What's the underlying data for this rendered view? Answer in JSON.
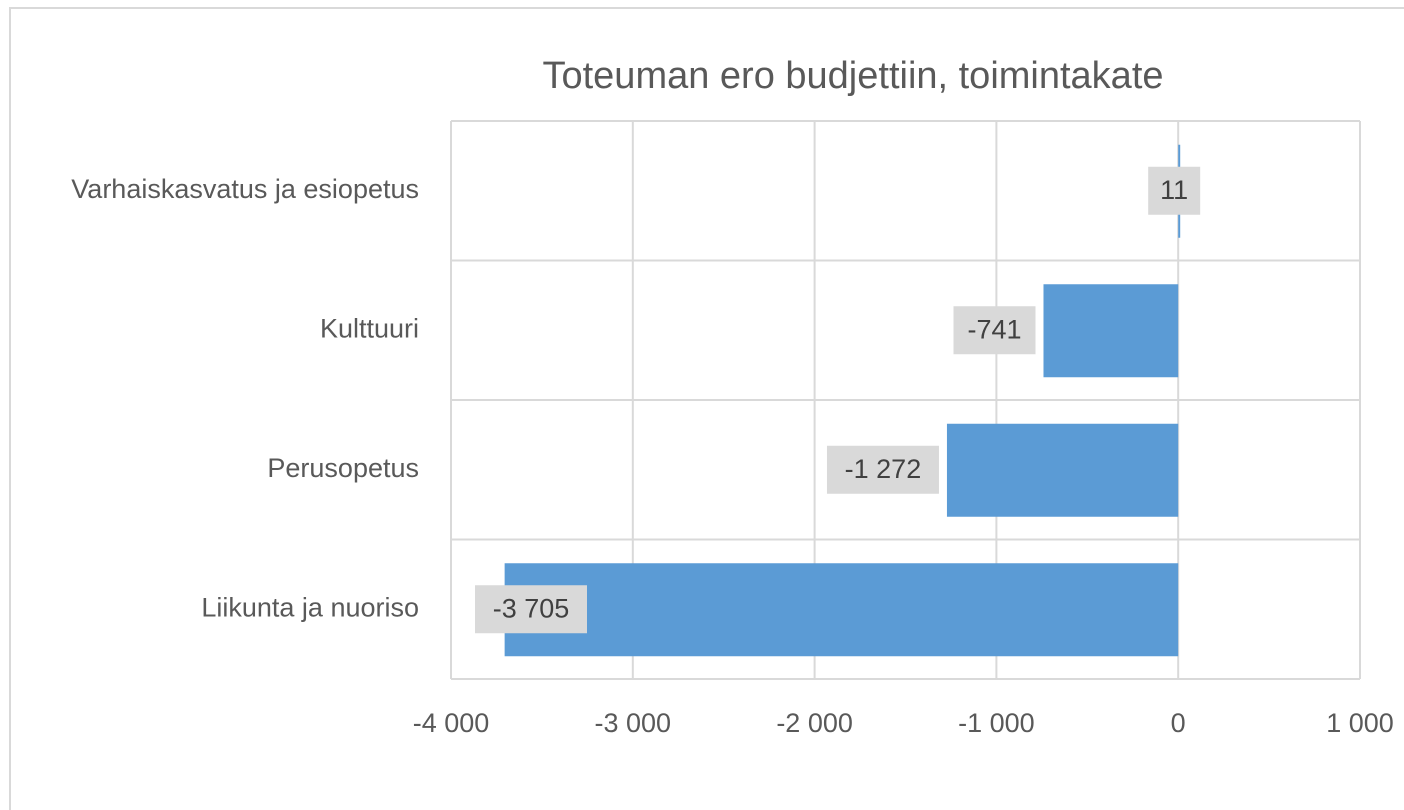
{
  "chart_data": {
    "type": "barh",
    "title": "Toteuman ero budjettiin, toimintakate",
    "categories": [
      "Varhaiskasvatus ja esiopetus",
      "Kulttuuri",
      "Perusopetus",
      "Liikunta ja nuoriso"
    ],
    "values": [
      11,
      -741,
      -1272,
      -3705
    ],
    "value_labels": [
      "11",
      "-741",
      "-1 272",
      "-3 705"
    ],
    "color": "#5b9bd5",
    "xlim": [
      -4000,
      1000
    ],
    "xticks": [
      {
        "value": -4000,
        "label": "-4 000"
      },
      {
        "value": -3000,
        "label": "-3 000"
      },
      {
        "value": -2000,
        "label": "-2 000"
      },
      {
        "value": -1000,
        "label": "-1 000"
      },
      0,
      {
        "value": 1000,
        "label": "1 000"
      }
    ],
    "grid": true
  }
}
